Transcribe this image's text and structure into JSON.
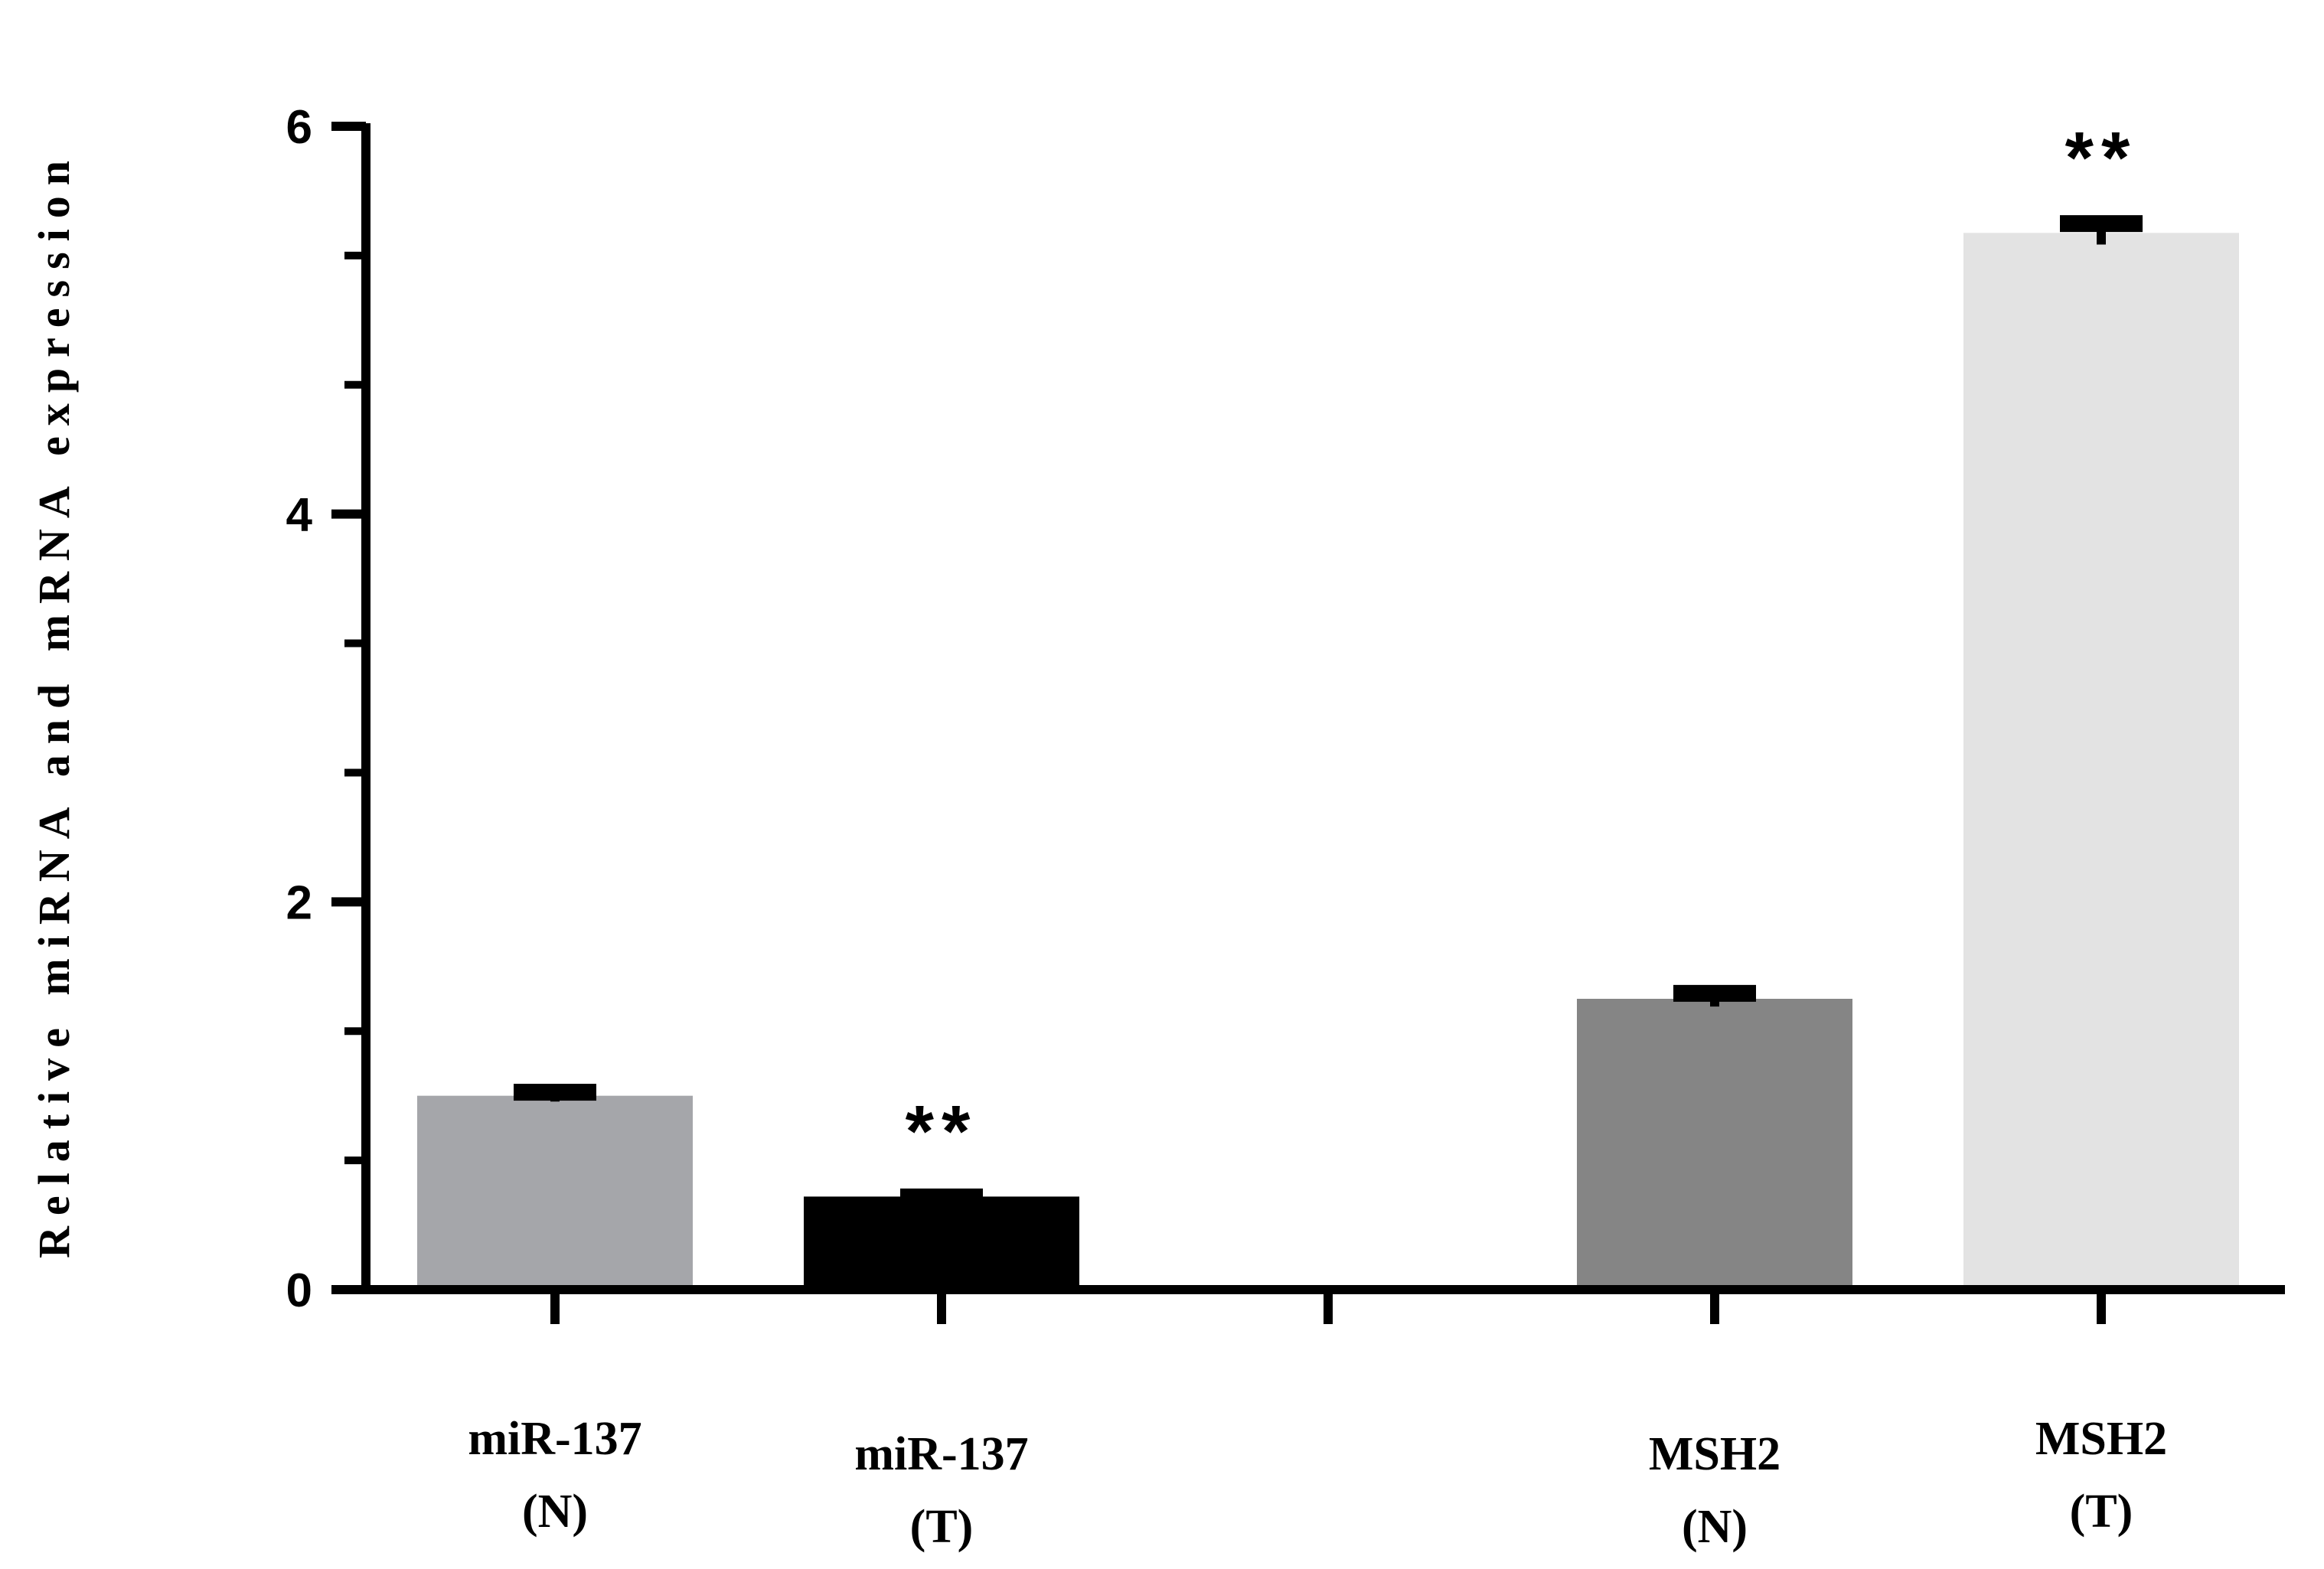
{
  "chart_data": {
    "type": "bar",
    "title": "",
    "xlabel": "",
    "ylabel": "Relative miRNA and mRNA expression",
    "ylim": [
      0,
      6
    ],
    "yticks": [
      "0",
      "2",
      "4",
      "6"
    ],
    "grid": false,
    "legend": "none",
    "categories": [
      {
        "line1": "miR-137",
        "line2": "(N)"
      },
      {
        "line1": "miR-137",
        "line2": "(T)"
      },
      {
        "line1": "",
        "line2": ""
      },
      {
        "line1": "MSH2",
        "line2": "(N)"
      },
      {
        "line1": "MSH2",
        "line2": "(T)"
      }
    ],
    "values": [
      1.0,
      0.48,
      null,
      1.5,
      5.45
    ],
    "errors": [
      0.03,
      0.01,
      null,
      0.04,
      0.06
    ],
    "annotations": [
      "",
      "**",
      "",
      "",
      "**"
    ],
    "colors": [
      "#a5a6aa",
      "#000000",
      "#ffffff",
      "#858585",
      "#e3e3e3"
    ]
  }
}
